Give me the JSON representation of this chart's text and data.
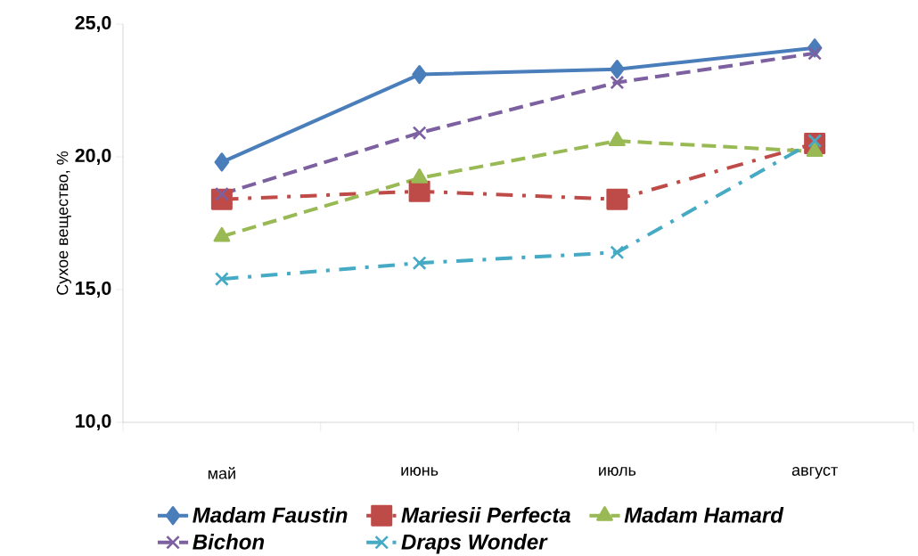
{
  "chart_data": {
    "type": "line",
    "ylabel": "Сухое вещество, %",
    "categories": [
      "май",
      "июнь",
      "июль",
      "август"
    ],
    "ylim": [
      10,
      25
    ],
    "yticks": [
      {
        "value": 10,
        "label": "10,0"
      },
      {
        "value": 15,
        "label": "15,0"
      },
      {
        "value": 20,
        "label": "20,0"
      },
      {
        "value": 25,
        "label": "25,0"
      }
    ],
    "grid": false,
    "legend": "bottom",
    "series": [
      {
        "name": "Madam Faustin",
        "color": "#4a7ebb",
        "marker": "diamond",
        "line_style": "solid",
        "values": [
          19.8,
          23.1,
          23.3,
          24.1
        ]
      },
      {
        "name": "Mariesii Perfecta",
        "color": "#be4b48",
        "marker": "square",
        "line_style": "dashdot",
        "values": [
          18.4,
          18.7,
          18.4,
          20.5
        ]
      },
      {
        "name": "Madam Hamard",
        "color": "#98b954",
        "marker": "triangle",
        "line_style": "dashed",
        "values": [
          17.0,
          19.2,
          20.6,
          20.2
        ]
      },
      {
        "name": "Bichon",
        "color": "#7d60a0",
        "marker": "cross",
        "line_style": "dashed",
        "values": [
          18.6,
          20.9,
          22.8,
          23.9
        ]
      },
      {
        "name": "Draps Wonder",
        "color": "#46aac5",
        "marker": "cross",
        "line_style": "dashdot",
        "values": [
          15.4,
          16.0,
          16.4,
          20.6
        ]
      }
    ]
  }
}
